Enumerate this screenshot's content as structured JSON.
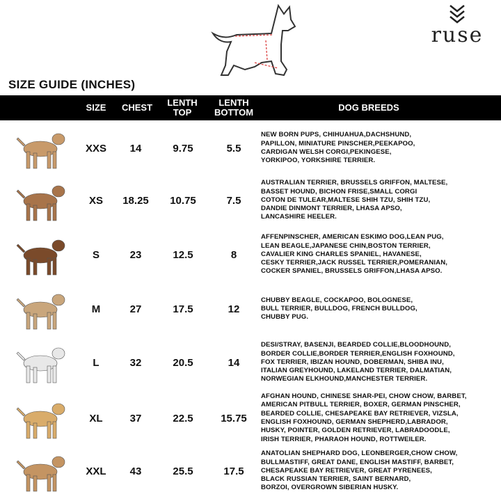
{
  "brand": {
    "logo_text": "ruse"
  },
  "title": "SIZE GUIDE (INCHES)",
  "headers": {
    "size": "SIZE",
    "chest": "CHEST",
    "top": "LENTH TOP",
    "bottom": "LENTH BOTTOM",
    "breeds": "DOG BREEDS"
  },
  "rows": [
    {
      "size": "XXS",
      "chest": "14",
      "top": "9.75",
      "bottom": "5.5",
      "dog": "chihuahua",
      "color": "#c89a6a",
      "breeds": [
        "NEW BORN PUPS, CHIHUAHUA,DACHSHUND,",
        "PAPILLON, MINIATURE PINSCHER,PEEKAPOO,",
        "CARDIGAN WELSH CORGI,PEKINGESE,",
        "YORKIPOO, YORKSHIRE TERRIER."
      ]
    },
    {
      "size": "XS",
      "chest": "18.25",
      "top": "10.75",
      "bottom": "7.5",
      "dog": "shih-tzu",
      "color": "#a8744a",
      "breeds": [
        "AUSTRALIAN TERRIER, BRUSSELS GRIFFON, MALTESE,",
        "BASSET HOUND, BICHON FRISE,SMALL CORGI",
        "COTON DE TULEAR,MALTESE SHIH TZU, SHIH TZU,",
        "DANDIE DINMONT TERRIER, LHASA APSO,",
        "LANCASHIRE HEELER."
      ]
    },
    {
      "size": "S",
      "chest": "23",
      "top": "12.5",
      "bottom": "8",
      "dog": "beagle",
      "color": "#7a4a2a",
      "breeds": [
        "AFFENPINSCHER, AMERICAN ESKIMO DOG,LEAN PUG,",
        "LEAN BEAGLE,JAPANESE CHIN,BOSTON TERRIER,",
        "CAVALIER KING CHARLES SPANIEL, HAVANESE,",
        "CESKY TERRIER,JACK RUSSEL TERRIER,POMERANIAN,",
        "COCKER SPANIEL, BRUSSELS GRIFFON,LHASA APSO."
      ]
    },
    {
      "size": "M",
      "chest": "27",
      "top": "17.5",
      "bottom": "12",
      "dog": "pug",
      "color": "#c9a67c",
      "breeds": [
        "CHUBBY BEAGLE, COCKAPOO, BOLOGNESE,",
        "BULL TERRIER, BULLDOG, FRENCH BULLDOG,",
        "CHUBBY PUG."
      ]
    },
    {
      "size": "L",
      "chest": "32",
      "top": "20.5",
      "bottom": "14",
      "dog": "dalmatian",
      "color": "#e8e8e8",
      "breeds": [
        "DESI/STRAY, BASENJI, BEARDED COLLIE,BLOODHOUND,",
        "BORDER COLLIE,BORDER TERRIER,ENGLISH FOXHOUND,",
        "FOX TERRIER, IBIZAN HOUND, DOBERMAN, SHIBA INU,",
        "ITALIAN GREYHOUND, LAKELAND TERRIER, DALMATIAN,",
        "NORWEGIAN ELKHOUND,MANCHESTER TERRIER."
      ]
    },
    {
      "size": "XL",
      "chest": "37",
      "top": "22.5",
      "bottom": "15.75",
      "dog": "golden-retriever",
      "color": "#d9ac6a",
      "breeds": [
        "AFGHAN HOUND, CHINESE SHAR-PEI, CHOW CHOW, BARBET,",
        "AMERICAN PITBULL TERRIER, BOXER, GERMAN PINSCHER,",
        "BEARDED COLLIE, CHESAPEAKE BAY RETRIEVER, VIZSLA,",
        "ENGLISH FOXHOUND, GERMAN SHEPHERD,LABRADOR,",
        "HUSKY, POINTER, GOLDEN RETRIEVER, LABRADOODLE,",
        "IRISH TERRIER, PHARAOH HOUND, ROTTWEILER."
      ]
    },
    {
      "size": "XXL",
      "chest": "43",
      "top": "25.5",
      "bottom": "17.5",
      "dog": "great-dane",
      "color": "#c49462",
      "breeds": [
        "ANATOLIAN SHEPHARD DOG, LEONBERGER,CHOW CHOW,",
        "BULLMASTIFF, GREAT DANE, ENGLISH MASTIFF, BARBET,",
        "CHESAPEAKE BAY RETRIEVER, GREAT PYRENEES,",
        "BLACK RUSSIAN TERRIER, SAINT BERNARD,",
        "BORZOI, OVERGROWN SIBERIAN HUSKY."
      ]
    }
  ]
}
